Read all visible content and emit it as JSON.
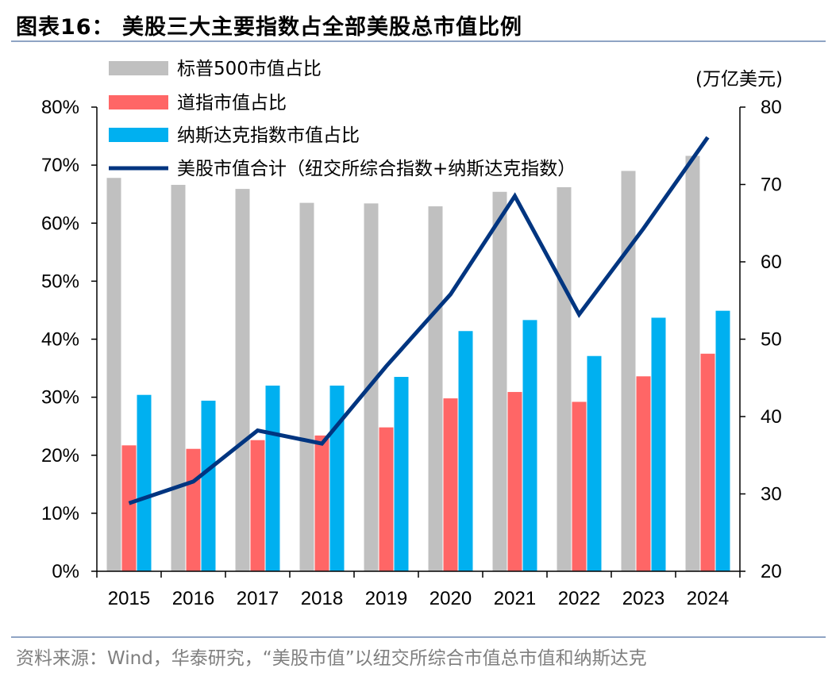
{
  "title": "图表16：  美股三大主要指数占全部美股总市值比例",
  "source": "资料来源：Wind，华泰研究，“美股市值”以纽交所综合市值总市值和纳斯达克",
  "chart_data": {
    "type": "bar",
    "categories": [
      "2015",
      "2016",
      "2017",
      "2018",
      "2019",
      "2020",
      "2021",
      "2022",
      "2023",
      "2024"
    ],
    "series": [
      {
        "name": "标普500市值占比",
        "kind": "bar",
        "axis": "left",
        "color": "#c0c0c0",
        "values": [
          0.678,
          0.666,
          0.659,
          0.635,
          0.634,
          0.629,
          0.654,
          0.662,
          0.69,
          0.716
        ]
      },
      {
        "name": "道指市值占比",
        "kind": "bar",
        "axis": "left",
        "color": "#ff6666",
        "values": [
          0.217,
          0.211,
          0.226,
          0.234,
          0.248,
          0.298,
          0.309,
          0.292,
          0.336,
          0.375
        ]
      },
      {
        "name": "纳斯达克指数市值占比",
        "kind": "bar",
        "axis": "left",
        "color": "#00b0f0",
        "values": [
          0.304,
          0.294,
          0.32,
          0.32,
          0.335,
          0.414,
          0.433,
          0.371,
          0.437,
          0.449
        ]
      },
      {
        "name": "美股市值合计（纽交所综合指数+纳斯达克指数）",
        "kind": "line",
        "axis": "right",
        "color": "#003580",
        "values": [
          28.8,
          31.6,
          38.2,
          36.5,
          46.5,
          55.8,
          68.5,
          53.2,
          64.3,
          76.1
        ]
      }
    ],
    "y_left": {
      "min": 0,
      "max": 0.8,
      "ticks": [
        "0%",
        "10%",
        "20%",
        "30%",
        "40%",
        "50%",
        "60%",
        "70%",
        "80%"
      ]
    },
    "y_right": {
      "min": 20,
      "max": 80,
      "ticks": [
        "20",
        "30",
        "40",
        "50",
        "60",
        "70",
        "80"
      ],
      "label": "(万亿美元)"
    },
    "legend_position": "top-left"
  }
}
